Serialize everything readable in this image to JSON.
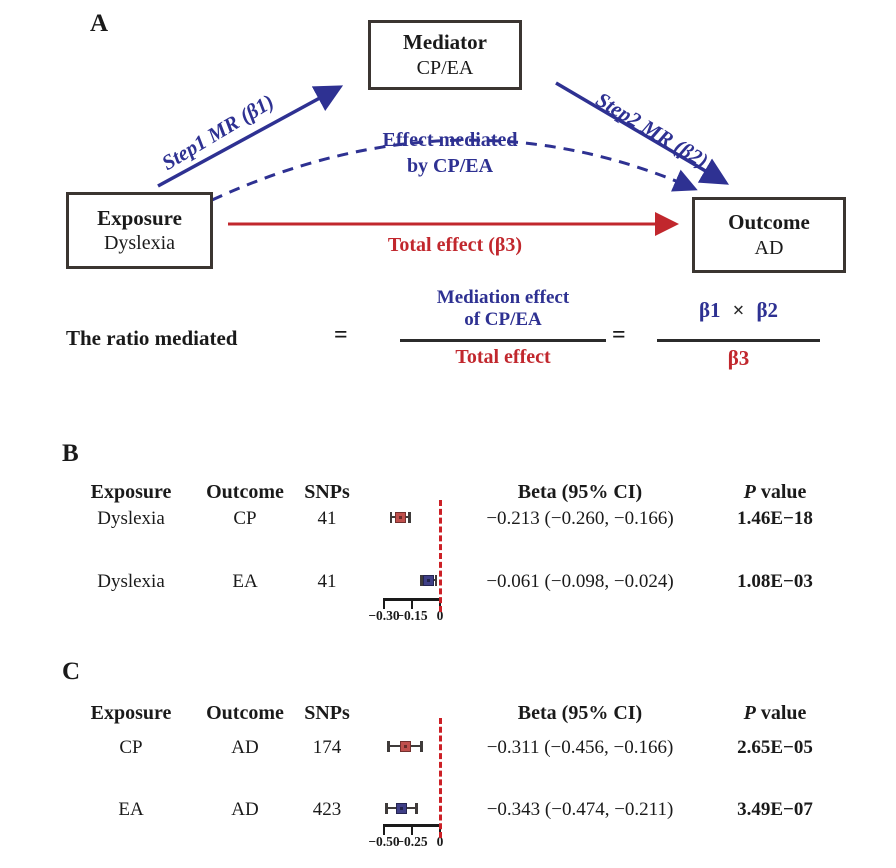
{
  "colors": {
    "blue_accent": "#2e3192",
    "red_accent": "#c1272d",
    "marker_red": "#c0504d",
    "marker_navy": "#3f3f87",
    "whisker": "#3f3b3a",
    "box_border": "#3b3531"
  },
  "panelA": {
    "label": "A",
    "mediator": {
      "title": "Mediator",
      "subtitle": "CP/EA"
    },
    "exposure": {
      "title": "Exposure",
      "subtitle": "Dyslexia"
    },
    "outcome": {
      "title": "Outcome",
      "subtitle": "AD"
    },
    "step1_label": "Step1 MR (β1)",
    "step2_label": "Step2 MR (β2)",
    "mediated_label_line1": "Effect mediated",
    "mediated_label_line2": "by CP/EA",
    "total_effect_label": "Total effect (β3)"
  },
  "formula": {
    "lhs": "The ratio mediated",
    "equals": "=",
    "numerator_line1": "Mediation effect",
    "numerator_line2": "of CP/EA",
    "denominator": "Total effect",
    "beta1": "β1",
    "times": "×",
    "beta2": "β2",
    "beta3": "β3"
  },
  "chart_data": [
    {
      "panel": "B",
      "type": "scatter",
      "variant": "forest_plot",
      "headers": {
        "exposure": "Exposure",
        "outcome": "Outcome",
        "snps": "SNPs",
        "beta": "Beta (95% CI)",
        "p_italic": "P",
        "p_rest": " value"
      },
      "rows": [
        {
          "exposure": "Dyslexia",
          "outcome": "CP",
          "snps": "41",
          "beta": -0.213,
          "ci_low": -0.26,
          "ci_high": -0.166,
          "beta_ci_text": "−0.213 (−0.260, −0.166)",
          "p_value": "1.46E−18",
          "marker_color": "#c0504d"
        },
        {
          "exposure": "Dyslexia",
          "outcome": "EA",
          "snps": "41",
          "beta": -0.061,
          "ci_low": -0.098,
          "ci_high": -0.024,
          "beta_ci_text": "−0.061 (−0.098, −0.024)",
          "p_value": "1.08E−03",
          "marker_color": "#3f3f87"
        }
      ],
      "axis": {
        "zero_reference_line": "dashed red at 0",
        "ticks": [
          {
            "value": -0.3,
            "label": "−0.30"
          },
          {
            "value": -0.15,
            "label": "−0.15"
          },
          {
            "value": 0,
            "label": "0"
          }
        ]
      }
    },
    {
      "panel": "C",
      "type": "scatter",
      "variant": "forest_plot",
      "headers": {
        "exposure": "Exposure",
        "outcome": "Outcome",
        "snps": "SNPs",
        "beta": "Beta (95% CI)",
        "p_italic": "P",
        "p_rest": " value"
      },
      "rows": [
        {
          "exposure": "CP",
          "outcome": "AD",
          "snps": "174",
          "beta": -0.311,
          "ci_low": -0.456,
          "ci_high": -0.166,
          "beta_ci_text": "−0.311 (−0.456, −0.166)",
          "p_value": "2.65E−05",
          "marker_color": "#c0504d"
        },
        {
          "exposure": "EA",
          "outcome": "AD",
          "snps": "423",
          "beta": -0.343,
          "ci_low": -0.474,
          "ci_high": -0.211,
          "beta_ci_text": "−0.343 (−0.474, −0.211)",
          "p_value": "3.49E−07",
          "marker_color": "#3f3f87"
        }
      ],
      "axis": {
        "zero_reference_line": "dashed red at 0",
        "ticks": [
          {
            "value": -0.5,
            "label": "−0.50"
          },
          {
            "value": -0.25,
            "label": "−0.25"
          },
          {
            "value": 0,
            "label": "0"
          }
        ]
      }
    }
  ]
}
